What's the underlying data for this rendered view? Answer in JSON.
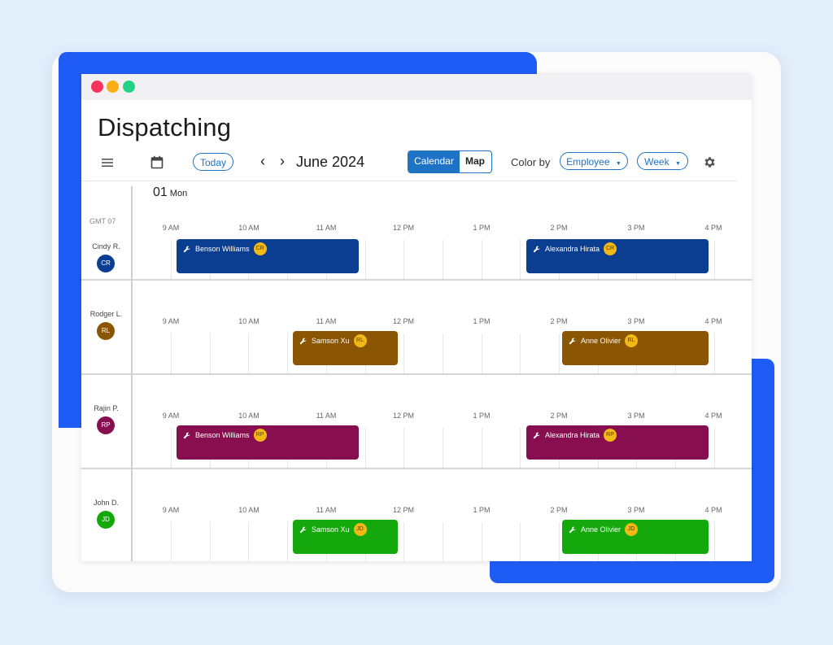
{
  "app": {
    "title": "Dispatching",
    "accent_color": "#1f5cf6"
  },
  "toolbar": {
    "menu_icon": "hamburger-menu-icon",
    "calendar_icon": "calendar-icon",
    "today_label": "Today",
    "prev_label": "‹",
    "next_label": "›",
    "month_label": "June 2024",
    "view_tabs": [
      {
        "label": "Calendar",
        "active": true
      },
      {
        "label": "Map",
        "active": false
      }
    ],
    "color_by_label": "Color by",
    "color_by_value": "Employee",
    "range_value": "Week",
    "settings_icon": "gear-icon"
  },
  "schedule": {
    "day_number": "01",
    "day_name": "Mon",
    "timezone": "GMT 07",
    "hours": [
      "9 AM",
      "10 AM",
      "11 AM",
      "12 PM",
      "1 PM",
      "2 PM",
      "3 PM",
      "4 PM"
    ],
    "rows": [
      {
        "name": "Cindy R.",
        "initials": "CR",
        "color": "#0b3d91",
        "jobs": [
          {
            "label": "Benson Williams",
            "badge": "CR"
          },
          {
            "label": "Alexandra Hirata",
            "badge": "CR"
          }
        ]
      },
      {
        "name": "Rodger L.",
        "initials": "RL",
        "color": "#8a5603",
        "jobs": [
          {
            "label": "Samson Xu",
            "badge": "RL"
          },
          {
            "label": "Anne Olivier",
            "badge": "RL"
          }
        ]
      },
      {
        "name": "Rajin P.",
        "initials": "RP",
        "color": "#880f4f",
        "jobs": [
          {
            "label": "Benson Williams",
            "badge": "RP"
          },
          {
            "label": "Alexandra Hirata",
            "badge": "RP"
          }
        ]
      },
      {
        "name": "John D.",
        "initials": "JD",
        "color": "#15a80d",
        "jobs": [
          {
            "label": "Samson Xu",
            "badge": "JD"
          },
          {
            "label": "Anne Olivier",
            "badge": "JD"
          }
        ]
      }
    ]
  }
}
